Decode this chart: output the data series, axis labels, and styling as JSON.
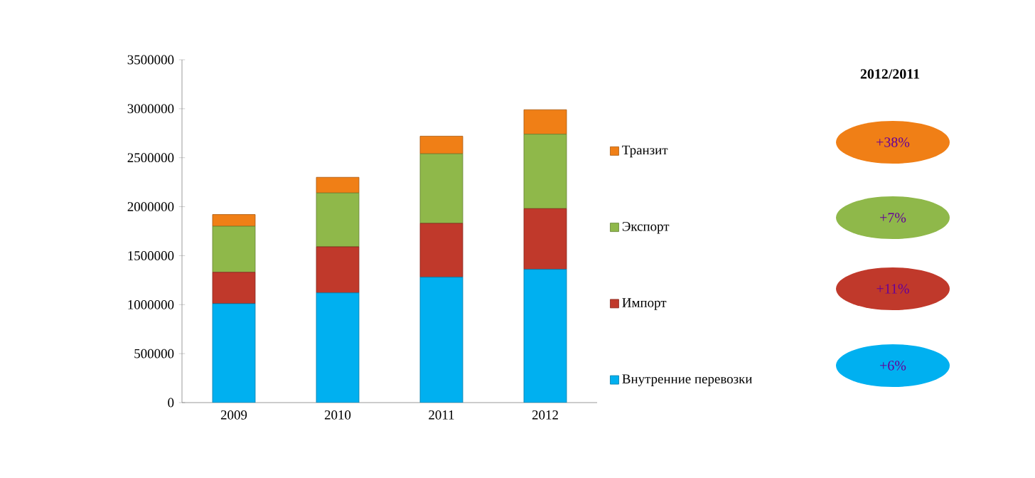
{
  "chart_data": {
    "type": "bar",
    "stacked": true,
    "categories": [
      "2009",
      "2010",
      "2011",
      "2012"
    ],
    "series": [
      {
        "name": "Внутренние перевозки",
        "color": "#00b0f0",
        "values": [
          1010000,
          1120000,
          1280000,
          1360000
        ]
      },
      {
        "name": "Импорт",
        "color": "#c0392b",
        "values": [
          320000,
          470000,
          550000,
          620000
        ]
      },
      {
        "name": "Экспорт",
        "color": "#8fb84a",
        "values": [
          470000,
          550000,
          710000,
          760000
        ]
      },
      {
        "name": "Транзит",
        "color": "#f07f16",
        "values": [
          120000,
          160000,
          180000,
          250000
        ]
      }
    ],
    "ylim": [
      0,
      3500000
    ],
    "yticks": [
      0,
      500000,
      1000000,
      1500000,
      2000000,
      2500000,
      3000000,
      3500000
    ],
    "legend": "right",
    "annotations": [
      "2012/2011",
      "+38%",
      "+7%",
      "+11%",
      "+6%"
    ]
  }
}
